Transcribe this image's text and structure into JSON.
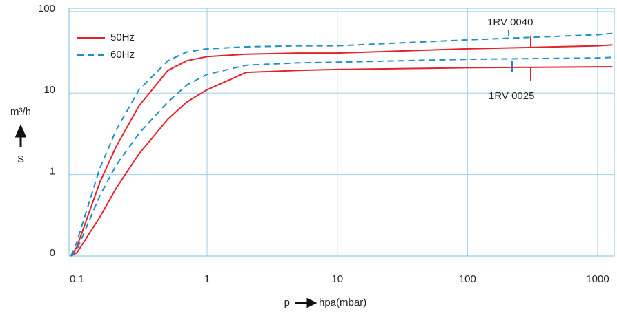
{
  "chart_data": {
    "type": "line",
    "x_log": true,
    "y_log": true,
    "grid": true,
    "xlabel_left": "p",
    "xlabel": "hpa(mbar)",
    "ylabel": "m³/h",
    "ylabel_symbol": "S",
    "x": [
      0.09,
      0.1,
      0.15,
      0.2,
      0.3,
      0.5,
      0.7,
      1,
      2,
      5,
      10,
      100,
      1000,
      1300
    ],
    "series": [
      {
        "name": "50Hz",
        "color": "#e3222b",
        "dashed": false,
        "values": [
          0.1,
          0.13,
          0.8,
          2.2,
          7,
          19,
          25,
          28,
          30,
          31,
          31,
          35,
          38,
          39
        ]
      },
      {
        "name": "60Hz",
        "color": "#1e8fc0",
        "dashed": true,
        "values": [
          0.1,
          0.15,
          1.2,
          3.5,
          11,
          25,
          32,
          35,
          37,
          38,
          38,
          45,
          52,
          54
        ]
      },
      {
        "name": "50Hz",
        "color": "#e3222b",
        "dashed": false,
        "values": [
          0.1,
          0.11,
          0.3,
          0.68,
          1.8,
          4.8,
          7.8,
          11,
          18,
          19,
          19.5,
          20.5,
          21,
          21
        ]
      },
      {
        "name": "60Hz",
        "color": "#1e8fc0",
        "dashed": true,
        "values": [
          0.1,
          0.12,
          0.55,
          1.3,
          3.2,
          7.8,
          12.6,
          17,
          22,
          23.5,
          24,
          26,
          27,
          27.5
        ]
      }
    ],
    "annotations": [
      "1RV 0040",
      "1RV 0025"
    ],
    "xlim": [
      0.087,
      1340
    ],
    "ylim": [
      0.1,
      110
    ],
    "xticks": [
      0.1,
      1,
      10,
      100,
      1000
    ],
    "yticks": [
      {
        "value": 0.1,
        "label": "0"
      },
      1,
      10,
      100
    ]
  }
}
